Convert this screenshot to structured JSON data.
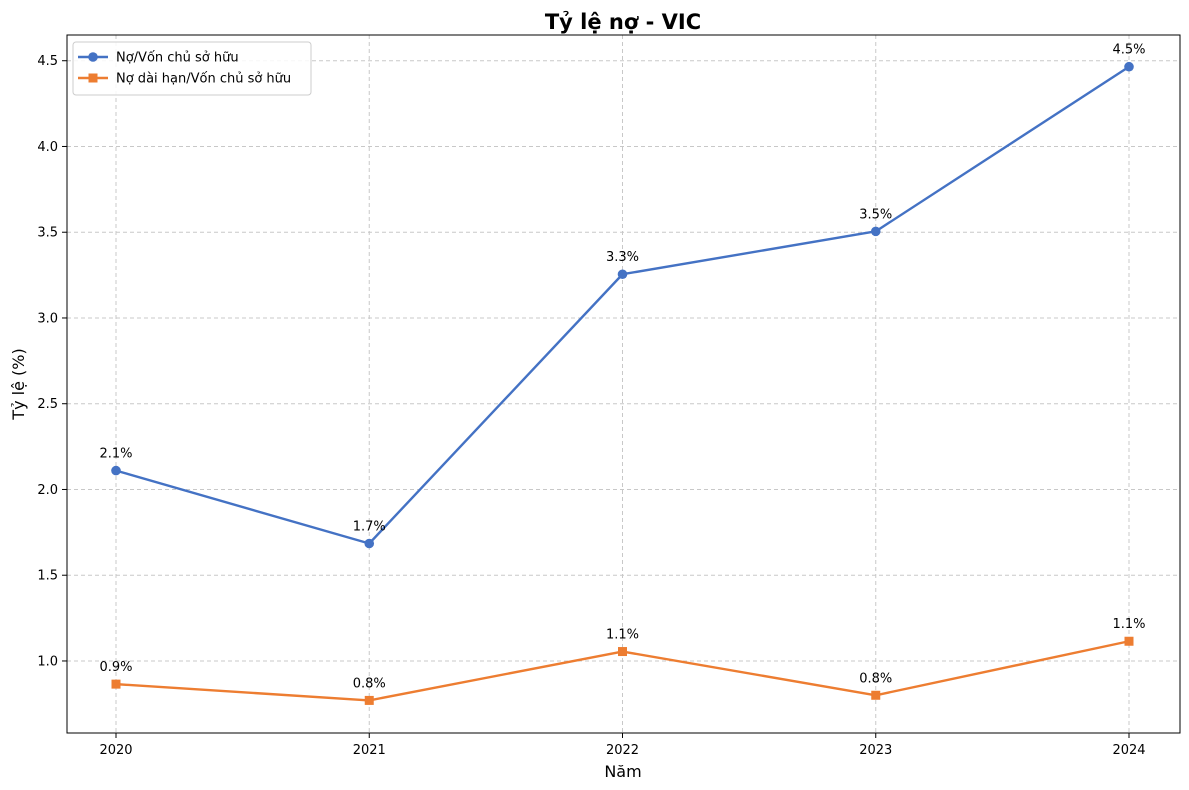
{
  "chart_data": {
    "type": "line",
    "title": "Tỷ lệ nợ - VIC",
    "xlabel": "Năm",
    "ylabel": "Tỷ lệ (%)",
    "x": [
      "2020",
      "2021",
      "2022",
      "2023",
      "2024"
    ],
    "ylim": [
      0.58,
      4.65
    ],
    "yticks": [
      "1.0",
      "1.5",
      "2.0",
      "2.5",
      "3.0",
      "3.5",
      "4.0",
      "4.5"
    ],
    "grid": true,
    "legend_position": "top-left",
    "series": [
      {
        "name": "Nợ/Vốn chủ sở hữu",
        "color": "#4472c4",
        "marker": "circle",
        "values": [
          2.11,
          1.685,
          3.255,
          3.505,
          4.465
        ],
        "labels": [
          "2.1%",
          "1.7%",
          "3.3%",
          "3.5%",
          "4.5%"
        ]
      },
      {
        "name": "Nợ dài hạn/Vốn chủ sở hữu",
        "color": "#ed7d31",
        "marker": "square",
        "values": [
          0.865,
          0.77,
          1.055,
          0.8,
          1.115
        ],
        "labels": [
          "0.9%",
          "0.8%",
          "1.1%",
          "0.8%",
          "1.1%"
        ]
      }
    ]
  }
}
